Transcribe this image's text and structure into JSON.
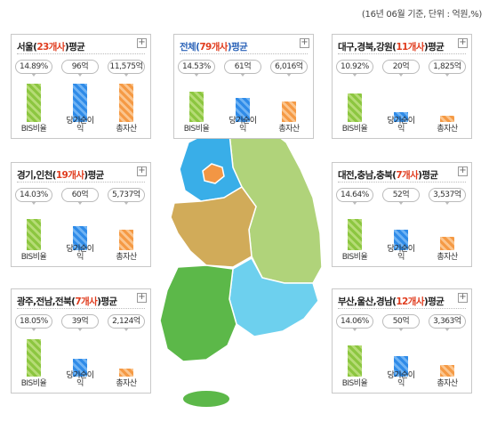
{
  "note": "(16년 06월 기준, 단위 : 억원,%)",
  "labels": {
    "bis": "BIS비율",
    "profit_head": "당기순이",
    "profit_tail": "익",
    "assets": "총자산"
  },
  "colors": {
    "bis": "#8cc640",
    "profit": "#2f8be8",
    "assets": "#f59a45",
    "count": "#e03c1e"
  },
  "chart_data": [
    {
      "type": "bar",
      "region": "서울",
      "count": "23개사",
      "suffix": "평균",
      "categories": [
        "BIS비율",
        "당기순이익",
        "총자산"
      ],
      "values": [
        14.89,
        96,
        11575
      ],
      "value_labels": [
        "14.89%",
        "96억",
        "11,575억"
      ]
    },
    {
      "type": "bar",
      "region": "전체",
      "count": "79개사",
      "suffix": "평균",
      "categories": [
        "BIS비율",
        "당기순이익",
        "총자산"
      ],
      "values": [
        14.53,
        61,
        6016
      ],
      "value_labels": [
        "14.53%",
        "61억",
        "6,016억"
      ]
    },
    {
      "type": "bar",
      "region": "대구,경북,강원",
      "count": "11개사",
      "suffix": "평균",
      "categories": [
        "BIS비율",
        "당기순이익",
        "총자산"
      ],
      "values": [
        10.92,
        20,
        1825
      ],
      "value_labels": [
        "10.92%",
        "20억",
        "1,825억"
      ]
    },
    {
      "type": "bar",
      "region": "경기,인천",
      "count": "19개사",
      "suffix": "평균",
      "categories": [
        "BIS비율",
        "당기순이익",
        "총자산"
      ],
      "values": [
        14.03,
        60,
        5737
      ],
      "value_labels": [
        "14.03%",
        "60억",
        "5,737억"
      ]
    },
    {
      "type": "bar",
      "region": "대전,충남,충북",
      "count": "7개사",
      "suffix": "평균",
      "categories": [
        "BIS비율",
        "당기순이익",
        "총자산"
      ],
      "values": [
        14.64,
        52,
        3537
      ],
      "value_labels": [
        "14.64%",
        "52억",
        "3,537억"
      ]
    },
    {
      "type": "bar",
      "region": "광주,전남,전북",
      "count": "7개사",
      "suffix": "평균",
      "categories": [
        "BIS비율",
        "당기순이익",
        "총자산"
      ],
      "values": [
        18.05,
        39,
        2124
      ],
      "value_labels": [
        "18.05%",
        "39억",
        "2,124억"
      ]
    },
    {
      "type": "bar",
      "region": "부산,울산,경남",
      "count": "12개사",
      "suffix": "평균",
      "categories": [
        "BIS비율",
        "당기순이익",
        "총자산"
      ],
      "values": [
        14.06,
        50,
        3363
      ],
      "value_labels": [
        "14.06%",
        "50억",
        "3,363억"
      ]
    }
  ]
}
